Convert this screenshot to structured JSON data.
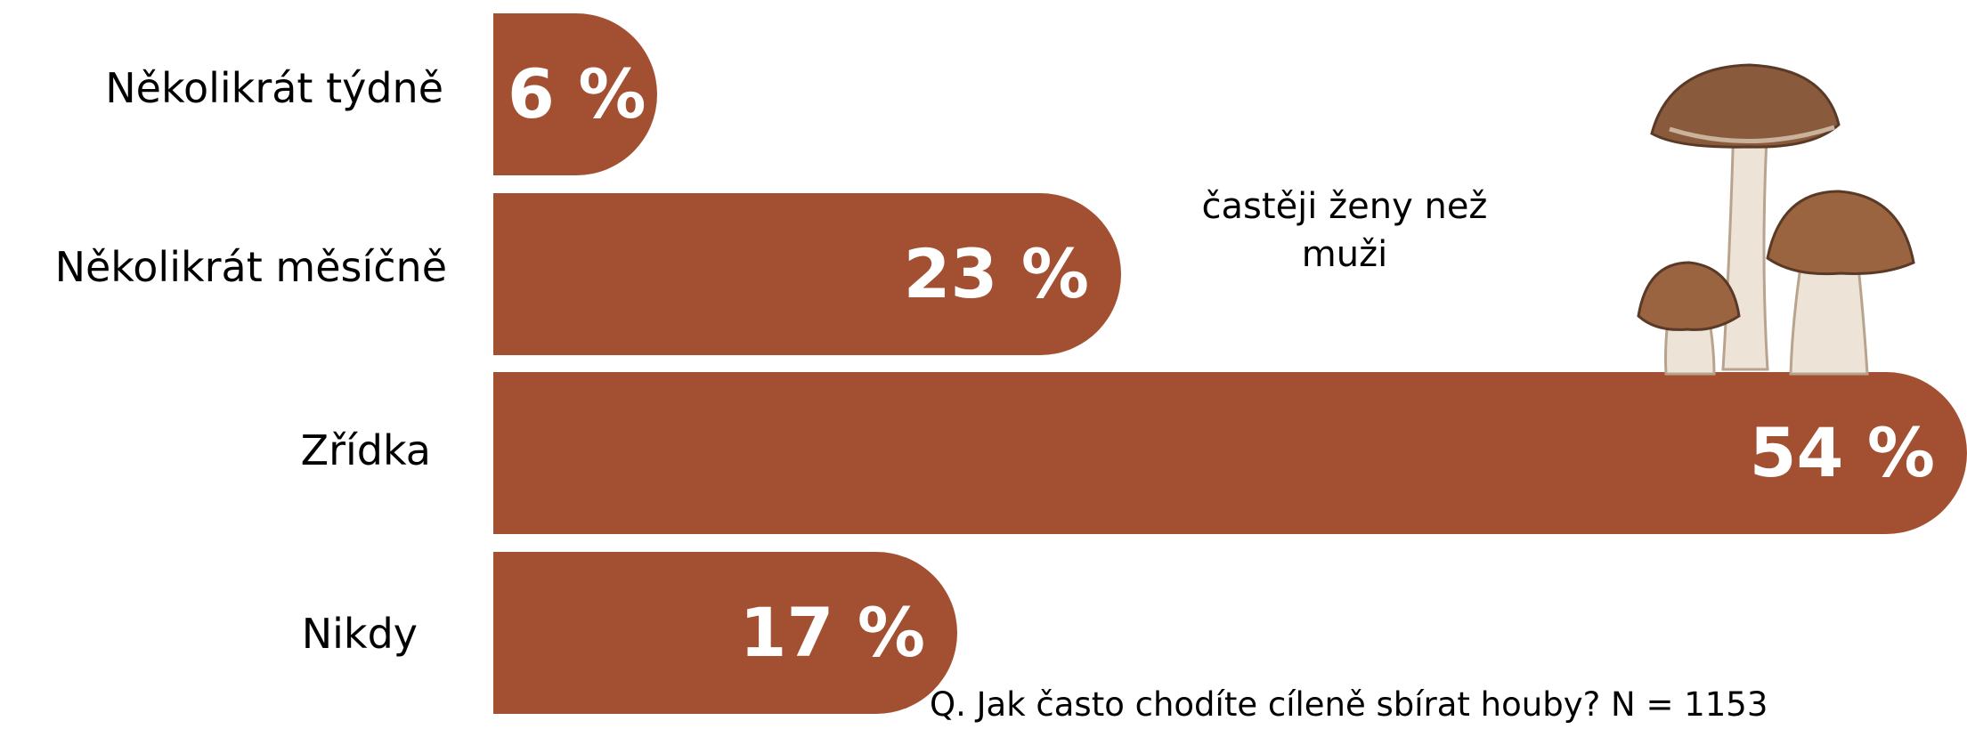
{
  "chart_data": {
    "type": "bar",
    "orientation": "horizontal",
    "categories": [
      "Několikrát týdně",
      "Několikrát měsíčně",
      "Zřídka",
      "Nikdy"
    ],
    "values": [
      6,
      23,
      54,
      17
    ],
    "value_labels": [
      "6 %",
      "23 %",
      "54  %",
      "17 %"
    ],
    "unit": "%",
    "xlim": [
      0,
      54
    ],
    "grid": false,
    "bar_color": "#A35032",
    "annotation": "častěji ženy než muži",
    "question": "Q. Jak často chodíte cíleně sbírat houby? N = 1153"
  },
  "illustration": {
    "icon": "mushrooms-illustration",
    "colors": {
      "cap": "#8A5A3C",
      "stem": "#EDE3D6"
    }
  }
}
